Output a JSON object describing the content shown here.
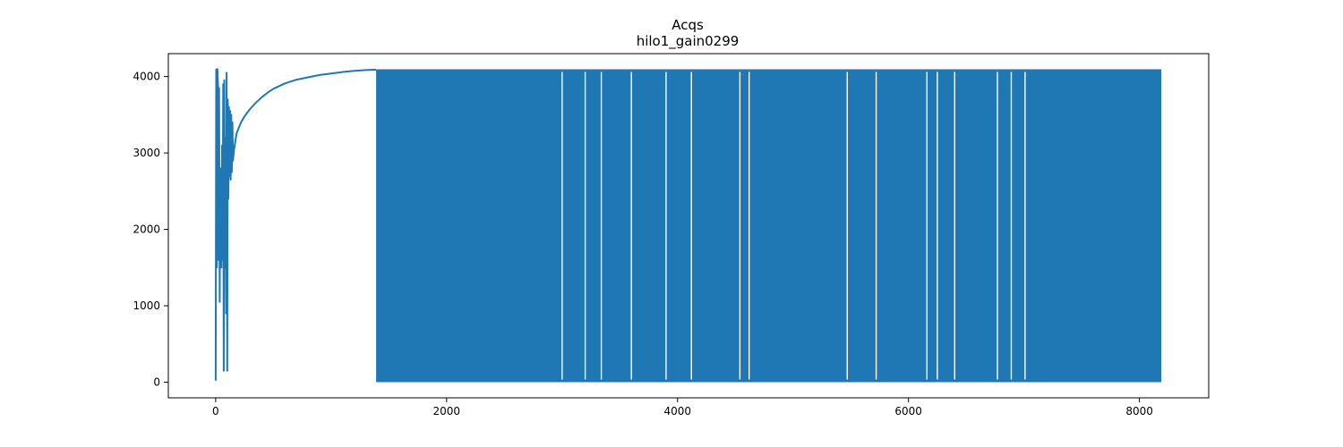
{
  "chart_data": {
    "type": "line",
    "title": "Acqs",
    "subtitle": "hilo1_gain0299",
    "xlabel": "",
    "ylabel": "",
    "xlim": [
      -410,
      8600
    ],
    "ylim": [
      -205,
      4300
    ],
    "x_ticks": [
      0,
      2000,
      4000,
      6000,
      8000
    ],
    "y_ticks": [
      0,
      1000,
      2000,
      3000,
      4000
    ],
    "x_tick_labels": [
      "0",
      "2000",
      "4000",
      "6000",
      "8000"
    ],
    "y_tick_labels": [
      "0",
      "1000",
      "2000",
      "3000",
      "4000"
    ],
    "grid": false,
    "legend": "none",
    "series_color": "#1f77b4",
    "series": [
      {
        "x": [
          0,
          5,
          10,
          15,
          20,
          25,
          30,
          35,
          40,
          45,
          50,
          55,
          60,
          65,
          70,
          75,
          80,
          85,
          90,
          95,
          100,
          105,
          110,
          115,
          120,
          125,
          130,
          135,
          140,
          145,
          150,
          160,
          170,
          180,
          200,
          220,
          250,
          300,
          350,
          400,
          450,
          500,
          600,
          700,
          800,
          900,
          1000,
          1100,
          1200,
          1300,
          1390
        ],
        "values": [
          20,
          4090,
          1500,
          4100,
          3900,
          1600,
          3850,
          1050,
          2800,
          2200,
          1500,
          3100,
          1600,
          3900,
          150,
          3950,
          1500,
          3200,
          900,
          4050,
          150,
          3700,
          2400,
          3600,
          2700,
          3550,
          2650,
          3500,
          2750,
          3400,
          2900,
          3050,
          3150,
          3250,
          3330,
          3400,
          3480,
          3580,
          3660,
          3730,
          3790,
          3840,
          3910,
          3960,
          3990,
          4020,
          4040,
          4060,
          4075,
          4085,
          4090
        ]
      }
    ],
    "dense_oscillation": {
      "x_range": [
        1390,
        8190
      ],
      "min": 0,
      "max": 4095,
      "gap_x": [
        3000,
        3200,
        3340,
        3600,
        3900,
        4120,
        4540,
        4620,
        5470,
        5720,
        6160,
        6250,
        6400,
        6770,
        6890,
        7010
      ]
    }
  }
}
